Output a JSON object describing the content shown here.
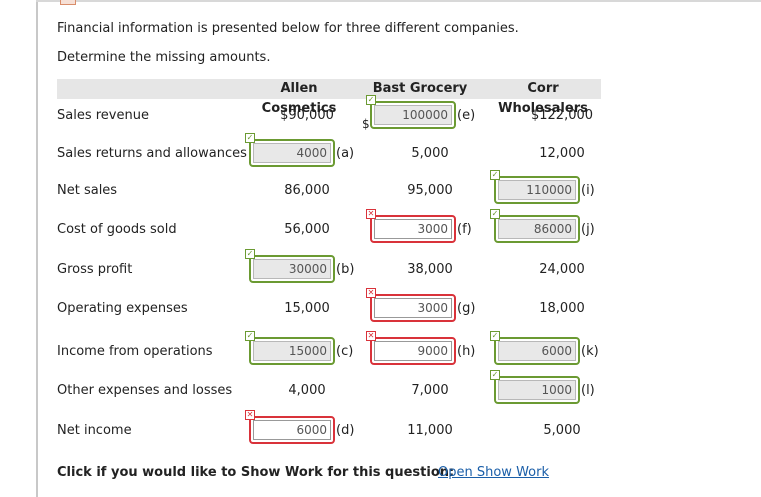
{
  "intro": {
    "line1": "Financial information is presented below for three different companies.",
    "line2": "Determine the missing amounts."
  },
  "columns": [
    "Allen Cosmetics",
    "Bast Grocery",
    "Corr Wholesalers"
  ],
  "rows": [
    {
      "label": "Sales revenue",
      "cells": [
        {
          "kind": "static",
          "text": "$90,000"
        },
        {
          "kind": "input",
          "value": "100000",
          "letter": "(e)",
          "status": "correct",
          "prefix": "$"
        },
        {
          "kind": "static",
          "text": "$122,000"
        }
      ]
    },
    {
      "label": "Sales returns and allowances",
      "cells": [
        {
          "kind": "input",
          "value": "4000",
          "letter": "(a)",
          "status": "correct"
        },
        {
          "kind": "static",
          "text": "5,000"
        },
        {
          "kind": "static",
          "text": "12,000"
        }
      ]
    },
    {
      "label": "Net sales",
      "cells": [
        {
          "kind": "static",
          "text": "86,000"
        },
        {
          "kind": "static",
          "text": "95,000"
        },
        {
          "kind": "input",
          "value": "110000",
          "letter": "(i)",
          "status": "correct"
        }
      ]
    },
    {
      "label": "Cost of goods sold",
      "cells": [
        {
          "kind": "static",
          "text": "56,000"
        },
        {
          "kind": "input",
          "value": "3000",
          "letter": "(f)",
          "status": "incorrect"
        },
        {
          "kind": "input",
          "value": "86000",
          "letter": "(j)",
          "status": "correct"
        }
      ]
    },
    {
      "label": "Gross profit",
      "cells": [
        {
          "kind": "input",
          "value": "30000",
          "letter": "(b)",
          "status": "correct"
        },
        {
          "kind": "static",
          "text": "38,000"
        },
        {
          "kind": "static",
          "text": "24,000"
        }
      ]
    },
    {
      "label": "Operating expenses",
      "cells": [
        {
          "kind": "static",
          "text": "15,000"
        },
        {
          "kind": "input",
          "value": "3000",
          "letter": "(g)",
          "status": "incorrect"
        },
        {
          "kind": "static",
          "text": "18,000"
        }
      ]
    },
    {
      "label": "Income from operations",
      "cells": [
        {
          "kind": "input",
          "value": "15000",
          "letter": "(c)",
          "status": "correct"
        },
        {
          "kind": "input",
          "value": "9000",
          "letter": "(h)",
          "status": "incorrect"
        },
        {
          "kind": "input",
          "value": "6000",
          "letter": "(k)",
          "status": "correct"
        }
      ]
    },
    {
      "label": "Other expenses and losses",
      "cells": [
        {
          "kind": "static",
          "text": "4,000"
        },
        {
          "kind": "static",
          "text": "7,000"
        },
        {
          "kind": "input",
          "value": "1000",
          "letter": "(l)",
          "status": "correct"
        }
      ]
    },
    {
      "label": "Net income",
      "cells": [
        {
          "kind": "input",
          "value": "6000",
          "letter": "(d)",
          "status": "incorrect"
        },
        {
          "kind": "static",
          "text": "11,000"
        },
        {
          "kind": "static",
          "text": "5,000"
        }
      ]
    }
  ],
  "marks": {
    "correct": "✓",
    "incorrect": "✕"
  },
  "icons": {
    "correct": "check-icon",
    "incorrect": "x-icon"
  },
  "colors": {
    "correct": "#6b9a32",
    "incorrect": "#d9323a",
    "link": "#1a5ea8"
  },
  "footer": {
    "question": "Click if you would like to Show Work for this question:",
    "link": "Open Show Work"
  }
}
